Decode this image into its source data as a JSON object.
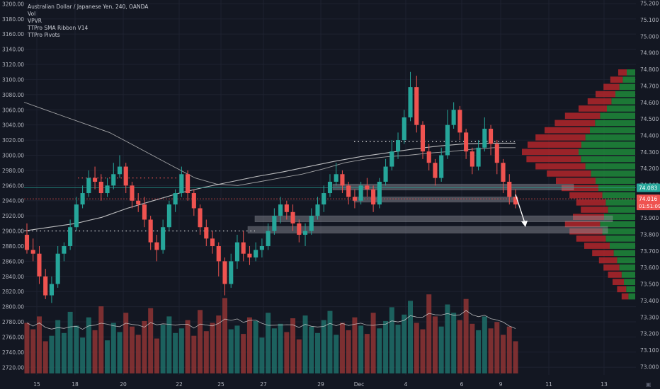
{
  "legend": {
    "title": "Australian Dollar / Japanese Yen, 240, OANDA",
    "indicators": [
      "Vol",
      "VPVR",
      "TTPro SMA Ribbon V14",
      "TTPro Pivots"
    ]
  },
  "price_tags": {
    "current_line": "74.083",
    "last_price": "74.016",
    "countdown": "01:51:09"
  },
  "colors": {
    "background": "#131722",
    "bull": "#26a69a",
    "bear": "#ef5350",
    "grid": "#1e2230",
    "axis_text": "#b2b5be"
  },
  "chart_data": {
    "type": "candlestick",
    "x_labels": [
      "15",
      "18",
      "20",
      "22",
      "25",
      "27",
      "29",
      "Dec",
      "4",
      "6",
      "9",
      "11",
      "13"
    ],
    "left_axis": {
      "ticks": [
        "2720.00",
        "2740.00",
        "2760.00",
        "2780.00",
        "2800.00",
        "2820.00",
        "2840.00",
        "2860.00",
        "2880.00",
        "2900.00",
        "2920.00",
        "2940.00",
        "2960.00",
        "2980.00",
        "3000.00",
        "3020.00",
        "3040.00",
        "3060.00",
        "3080.00",
        "3100.00",
        "3120.00",
        "3140.00",
        "3160.00",
        "3180.00",
        "3200.00"
      ],
      "range": [
        2710,
        3205
      ]
    },
    "right_axis": {
      "ticks": [
        "73.000",
        "73.100",
        "73.200",
        "73.300",
        "73.400",
        "73.500",
        "73.600",
        "73.700",
        "73.800",
        "73.900",
        "74.000",
        "74.100",
        "74.200",
        "74.300",
        "74.400",
        "74.500",
        "74.600",
        "74.700",
        "74.800",
        "74.900",
        "75.000",
        "75.100",
        "75.200"
      ],
      "range": [
        72.95,
        75.22
      ]
    },
    "candles": [
      [
        2895,
        2875,
        2910,
        2870
      ],
      [
        2875,
        2870,
        2890,
        2860
      ],
      [
        2870,
        2840,
        2880,
        2830
      ],
      [
        2840,
        2815,
        2850,
        2810
      ],
      [
        2815,
        2830,
        2840,
        2805
      ],
      [
        2830,
        2870,
        2880,
        2825
      ],
      [
        2870,
        2880,
        2885,
        2860
      ],
      [
        2880,
        2905,
        2915,
        2875
      ],
      [
        2905,
        2935,
        2945,
        2900
      ],
      [
        2935,
        2950,
        2960,
        2930
      ],
      [
        2950,
        2970,
        2980,
        2945
      ],
      [
        2970,
        2965,
        2985,
        2955
      ],
      [
        2965,
        2950,
        2975,
        2940
      ],
      [
        2950,
        2960,
        2970,
        2945
      ],
      [
        2960,
        2975,
        2990,
        2955
      ],
      [
        2975,
        2985,
        3000,
        2970
      ],
      [
        2985,
        2960,
        2990,
        2950
      ],
      [
        2960,
        2940,
        2965,
        2930
      ],
      [
        2940,
        2935,
        2950,
        2925
      ],
      [
        2935,
        2915,
        2945,
        2905
      ],
      [
        2915,
        2885,
        2920,
        2875
      ],
      [
        2885,
        2875,
        2895,
        2860
      ],
      [
        2875,
        2905,
        2915,
        2870
      ],
      [
        2905,
        2935,
        2940,
        2900
      ],
      [
        2935,
        2950,
        2955,
        2925
      ],
      [
        2950,
        2975,
        2985,
        2945
      ],
      [
        2975,
        2950,
        2980,
        2940
      ],
      [
        2950,
        2930,
        2955,
        2920
      ],
      [
        2930,
        2905,
        2935,
        2895
      ],
      [
        2905,
        2890,
        2915,
        2880
      ],
      [
        2890,
        2880,
        2900,
        2870
      ],
      [
        2880,
        2860,
        2885,
        2840
      ],
      [
        2860,
        2830,
        2865,
        2815
      ],
      [
        2830,
        2860,
        2870,
        2825
      ],
      [
        2860,
        2885,
        2895,
        2850
      ],
      [
        2885,
        2870,
        2900,
        2860
      ],
      [
        2870,
        2865,
        2880,
        2855
      ],
      [
        2865,
        2875,
        2885,
        2860
      ],
      [
        2875,
        2880,
        2890,
        2865
      ],
      [
        2880,
        2900,
        2910,
        2875
      ],
      [
        2900,
        2920,
        2930,
        2895
      ],
      [
        2920,
        2935,
        2945,
        2910
      ],
      [
        2935,
        2925,
        2940,
        2915
      ],
      [
        2925,
        2910,
        2935,
        2900
      ],
      [
        2910,
        2895,
        2915,
        2885
      ],
      [
        2895,
        2900,
        2910,
        2880
      ],
      [
        2900,
        2920,
        2930,
        2895
      ],
      [
        2920,
        2935,
        2945,
        2915
      ],
      [
        2935,
        2950,
        2960,
        2925
      ],
      [
        2950,
        2965,
        2975,
        2945
      ],
      [
        2965,
        2975,
        2990,
        2960
      ],
      [
        2975,
        2960,
        2980,
        2950
      ],
      [
        2960,
        2945,
        2965,
        2935
      ],
      [
        2945,
        2940,
        2955,
        2930
      ],
      [
        2940,
        2960,
        2965,
        2935
      ],
      [
        2960,
        2955,
        2970,
        2945
      ],
      [
        2955,
        2935,
        2960,
        2925
      ],
      [
        2935,
        2965,
        2970,
        2930
      ],
      [
        2965,
        2985,
        2995,
        2960
      ],
      [
        2985,
        3005,
        3020,
        2980
      ],
      [
        3005,
        3020,
        3030,
        2995
      ],
      [
        3020,
        3050,
        3060,
        3015
      ],
      [
        3050,
        3090,
        3110,
        3045
      ],
      [
        3090,
        3040,
        3105,
        3030
      ],
      [
        3040,
        3005,
        3045,
        2995
      ],
      [
        3005,
        2990,
        3015,
        2980
      ],
      [
        2990,
        2970,
        2995,
        2960
      ],
      [
        2970,
        3000,
        3010,
        2965
      ],
      [
        3000,
        3040,
        3060,
        2995
      ],
      [
        3040,
        3060,
        3070,
        3035
      ],
      [
        3060,
        3030,
        3065,
        3020
      ],
      [
        3030,
        3005,
        3035,
        2995
      ],
      [
        3005,
        2985,
        3010,
        2975
      ],
      [
        2985,
        3010,
        3020,
        2980
      ],
      [
        3010,
        3035,
        3050,
        3005
      ],
      [
        3035,
        3015,
        3040,
        3000
      ],
      [
        3015,
        2990,
        3020,
        2975
      ],
      [
        2990,
        2965,
        2995,
        2950
      ],
      [
        2965,
        2945,
        2975,
        2935
      ],
      [
        2945,
        2935,
        2955,
        2930
      ]
    ],
    "volume_ratio": [
      0.55,
      0.48,
      0.62,
      0.35,
      0.41,
      0.58,
      0.44,
      0.67,
      0.52,
      0.39,
      0.61,
      0.47,
      0.73,
      0.36,
      0.55,
      0.45,
      0.66,
      0.51,
      0.42,
      0.57,
      0.71,
      0.38,
      0.53,
      0.62,
      0.44,
      0.49,
      0.58,
      0.41,
      0.69,
      0.46,
      0.55,
      0.63,
      0.82,
      0.48,
      0.52,
      0.43,
      0.61,
      0.57,
      0.39,
      0.66,
      0.49,
      0.54,
      0.45,
      0.6,
      0.37,
      0.63,
      0.51,
      0.44,
      0.58,
      0.68,
      0.42,
      0.55,
      0.47,
      0.61,
      0.52,
      0.43,
      0.66,
      0.49,
      0.57,
      0.72,
      0.53,
      0.64,
      0.79,
      0.55,
      0.48,
      0.86,
      0.62,
      0.51,
      0.75,
      0.66,
      0.58,
      0.81,
      0.54,
      0.47,
      0.62,
      0.49,
      0.56,
      0.42,
      0.51,
      0.35
    ],
    "series": [
      {
        "values": [
          3070,
          3060,
          3050,
          3040,
          3030,
          3015,
          3000,
          2985,
          2970,
          2962,
          2960,
          2965,
          2970,
          2975,
          2982,
          2990,
          2995,
          2998,
          3000,
          3003,
          3005,
          3008,
          3010,
          3010
        ]
      },
      {
        "values": [
          2900,
          2905,
          2910,
          2918,
          2930,
          2940,
          2950,
          2958,
          2965,
          2972,
          2978,
          2985,
          2992,
          2998,
          3003,
          3008,
          3012,
          3015,
          3016,
          3016
        ]
      }
    ],
    "pivots": [
      {
        "level": 2970,
        "range": "15-20"
      },
      {
        "level": 2900,
        "range": "15-27"
      },
      {
        "level": 3018,
        "range": "29-Dec"
      }
    ],
    "value_profile_ratio": [
      0.15,
      0.22,
      0.28,
      0.35,
      0.42,
      0.5,
      0.62,
      0.71,
      0.8,
      0.88,
      0.95,
      1.0,
      0.96,
      0.88,
      0.78,
      0.7,
      0.65,
      0.58,
      0.52,
      0.48,
      0.55,
      0.62,
      0.58,
      0.52,
      0.45,
      0.38,
      0.32,
      0.28,
      0.24,
      0.2,
      0.16,
      0.12
    ]
  }
}
